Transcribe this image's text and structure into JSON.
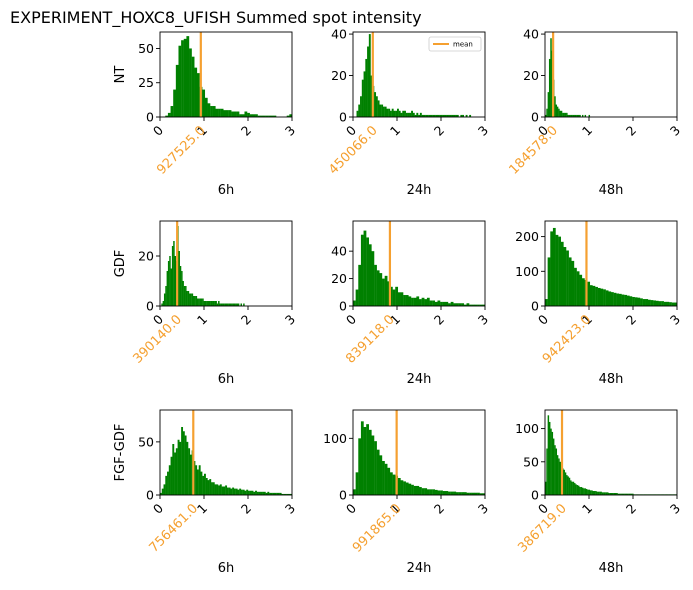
{
  "figure": {
    "title": "EXPERIMENT_HOXC8_UFISH  Summed spot intensity"
  },
  "colors": {
    "bar": "#008000",
    "mean_line": "#f5a030",
    "mean_text": "#f5a030"
  },
  "chart_data": [
    {
      "type": "bar",
      "row_label": "NT",
      "xlabel": "6h",
      "xlim": [
        0,
        3
      ],
      "ylim": [
        0,
        62
      ],
      "xticks": [
        "0",
        "1",
        "2",
        "3"
      ],
      "yticks": [
        0,
        25,
        50
      ],
      "mean_value": 0.927525,
      "mean_label": "927525.0",
      "legend": null,
      "bin_width": 0.06,
      "values": [
        0,
        0,
        1,
        3,
        8,
        20,
        38,
        52,
        56,
        57,
        59,
        50,
        44,
        36,
        32,
        22,
        20,
        14,
        10,
        8,
        8,
        6,
        6,
        6,
        5,
        5,
        5,
        4,
        4,
        4,
        2,
        2,
        4,
        3,
        2,
        2,
        2,
        1,
        1,
        1,
        1,
        1,
        1,
        1,
        0,
        0,
        0,
        0,
        1,
        2
      ]
    },
    {
      "type": "bar",
      "row_label": "",
      "xlabel": "24h",
      "xlim": [
        0,
        3
      ],
      "ylim": [
        0,
        41
      ],
      "xticks": [
        "0",
        "1",
        "2",
        "3"
      ],
      "yticks": [
        0,
        20,
        40
      ],
      "mean_value": 0.450066,
      "mean_label": "450066.0",
      "legend": "mean",
      "bin_width": 0.04,
      "values": [
        0,
        0,
        3,
        6,
        10,
        18,
        22,
        28,
        34,
        40,
        20,
        15,
        12,
        10,
        8,
        6,
        6,
        5,
        5,
        4,
        4,
        3,
        4,
        3,
        3,
        4,
        3,
        2,
        3,
        3,
        2,
        2,
        2,
        3,
        2,
        1,
        2,
        1,
        2,
        1,
        1,
        1,
        1,
        1,
        1,
        1,
        1,
        1,
        1,
        1,
        1,
        1,
        1,
        1,
        1,
        1,
        1,
        1,
        1,
        1,
        0,
        1,
        1,
        0,
        1,
        0,
        1,
        0,
        0,
        0,
        0,
        0,
        0,
        0,
        0
      ]
    },
    {
      "type": "bar",
      "row_label": "",
      "xlabel": "48h",
      "xlim": [
        0,
        3
      ],
      "ylim": [
        0,
        41
      ],
      "xticks": [
        "0",
        "1",
        "2",
        "3"
      ],
      "yticks": [
        0,
        20,
        40
      ],
      "mean_value": 0.184578,
      "mean_label": "184578.0",
      "legend": null,
      "bin_width": 0.03,
      "values": [
        1,
        4,
        12,
        28,
        38,
        32,
        18,
        10,
        6,
        5,
        4,
        3,
        3,
        2,
        2,
        2,
        2,
        1,
        1,
        1,
        1,
        1,
        1,
        1,
        1,
        1,
        1,
        0,
        1,
        0,
        1,
        0,
        0,
        1,
        0,
        0,
        0,
        0,
        0,
        0
      ]
    },
    {
      "type": "bar",
      "row_label": "GDF",
      "xlabel": "6h",
      "xlim": [
        0,
        3
      ],
      "ylim": [
        0,
        34
      ],
      "xticks": [
        "0",
        "1",
        "2",
        "3"
      ],
      "yticks": [
        0,
        20
      ],
      "mean_value": 0.39014,
      "mean_label": "390140.0",
      "legend": null,
      "bin_width": 0.03,
      "values": [
        0,
        1,
        2,
        5,
        8,
        14,
        18,
        20,
        15,
        24,
        26,
        20,
        18,
        32,
        22,
        16,
        14,
        10,
        8,
        8,
        6,
        6,
        5,
        5,
        5,
        4,
        4,
        4,
        3,
        3,
        3,
        3,
        3,
        2,
        2,
        2,
        2,
        2,
        2,
        2,
        2,
        2,
        2,
        1,
        2,
        1,
        1,
        1,
        1,
        1,
        1,
        1,
        1,
        1,
        1,
        1,
        1,
        1,
        1,
        1,
        0,
        1,
        0,
        1,
        0,
        0,
        0,
        0,
        0,
        0
      ]
    },
    {
      "type": "bar",
      "row_label": "",
      "xlabel": "24h",
      "xlim": [
        0,
        3
      ],
      "ylim": [
        0,
        62
      ],
      "xticks": [
        "0",
        "1",
        "2",
        "3"
      ],
      "yticks": [
        0,
        20,
        40
      ],
      "mean_value": 0.839118,
      "mean_label": "839118.0",
      "legend": null,
      "bin_width": 0.06,
      "values": [
        4,
        12,
        30,
        52,
        55,
        50,
        45,
        40,
        30,
        26,
        24,
        20,
        22,
        18,
        14,
        12,
        14,
        10,
        10,
        8,
        8,
        7,
        6,
        6,
        7,
        5,
        6,
        5,
        6,
        4,
        4,
        3,
        4,
        3,
        3,
        3,
        2,
        3,
        2,
        2,
        2,
        2,
        1,
        2,
        1,
        1,
        1,
        1,
        1,
        1
      ]
    },
    {
      "type": "bar",
      "row_label": "",
      "xlabel": "48h",
      "xlim": [
        0,
        3
      ],
      "ylim": [
        0,
        245
      ],
      "xticks": [
        "0",
        "1",
        "2",
        "3"
      ],
      "yticks": [
        0,
        100,
        200
      ],
      "mean_value": 0.942423,
      "mean_label": "942423.0",
      "legend": null,
      "bin_width": 0.06,
      "values": [
        20,
        140,
        215,
        225,
        205,
        200,
        185,
        170,
        160,
        140,
        130,
        110,
        100,
        90,
        80,
        75,
        70,
        60,
        58,
        55,
        52,
        50,
        48,
        45,
        42,
        40,
        38,
        36,
        35,
        33,
        32,
        30,
        28,
        26,
        25,
        24,
        22,
        20,
        20,
        18,
        17,
        16,
        15,
        14,
        14,
        12,
        12,
        11,
        10,
        10
      ]
    },
    {
      "type": "bar",
      "row_label": "FGF-GDF",
      "xlabel": "6h",
      "xlim": [
        0,
        3
      ],
      "ylim": [
        0,
        80
      ],
      "xticks": [
        "0",
        "1",
        "2",
        "3"
      ],
      "yticks": [
        0,
        50
      ],
      "mean_value": 0.756461,
      "mean_label": "756461.0",
      "legend": null,
      "bin_width": 0.04,
      "values": [
        2,
        6,
        10,
        18,
        22,
        28,
        36,
        48,
        40,
        44,
        52,
        50,
        64,
        60,
        56,
        50,
        44,
        38,
        42,
        32,
        28,
        24,
        28,
        22,
        18,
        20,
        16,
        14,
        15,
        12,
        12,
        10,
        10,
        9,
        10,
        8,
        8,
        9,
        7,
        7,
        6,
        7,
        6,
        6,
        5,
        6,
        5,
        5,
        4,
        5,
        4,
        4,
        4,
        3,
        4,
        3,
        3,
        3,
        3,
        3,
        2,
        3,
        2,
        2,
        2,
        2,
        2,
        2,
        2,
        1,
        1,
        1,
        1,
        1,
        1
      ]
    },
    {
      "type": "bar",
      "row_label": "",
      "xlabel": "24h",
      "xlim": [
        0,
        3
      ],
      "ylim": [
        0,
        150
      ],
      "xticks": [
        "0",
        "1",
        "2",
        "3"
      ],
      "yticks": [
        0,
        100
      ],
      "mean_value": 0.991865,
      "mean_label": "991865.0",
      "legend": null,
      "bin_width": 0.06,
      "values": [
        10,
        40,
        100,
        130,
        120,
        125,
        115,
        105,
        95,
        80,
        70,
        60,
        55,
        48,
        40,
        36,
        34,
        30,
        26,
        24,
        22,
        20,
        18,
        16,
        16,
        14,
        12,
        12,
        10,
        10,
        10,
        9,
        8,
        8,
        7,
        7,
        6,
        6,
        6,
        5,
        5,
        5,
        5,
        4,
        4,
        4,
        4,
        4,
        3,
        3
      ]
    },
    {
      "type": "bar",
      "row_label": "",
      "xlabel": "48h",
      "xlim": [
        0,
        3
      ],
      "ylim": [
        0,
        128
      ],
      "xticks": [
        "0",
        "1",
        "2",
        "3"
      ],
      "yticks": [
        0,
        50,
        100
      ],
      "mean_value": 0.386719,
      "mean_label": "386719.0",
      "legend": null,
      "bin_width": 0.03,
      "values": [
        20,
        70,
        120,
        110,
        100,
        95,
        85,
        75,
        70,
        60,
        55,
        50,
        45,
        40,
        38,
        34,
        30,
        28,
        26,
        22,
        20,
        20,
        18,
        16,
        15,
        14,
        12,
        12,
        11,
        10,
        10,
        9,
        8,
        8,
        7,
        7,
        6,
        6,
        6,
        5,
        5,
        5,
        5,
        4,
        4,
        4,
        4,
        4,
        3,
        3,
        3,
        3,
        3,
        3,
        3,
        2,
        2,
        2,
        2,
        2,
        2,
        2,
        2,
        2,
        2,
        2,
        2,
        1,
        1,
        1,
        1,
        1,
        1,
        1,
        1,
        1,
        1,
        1,
        1,
        1,
        1,
        1,
        1,
        1,
        1,
        1,
        1,
        1,
        1,
        1,
        1,
        1,
        1,
        1,
        1,
        1,
        1,
        1,
        1,
        1
      ]
    }
  ]
}
